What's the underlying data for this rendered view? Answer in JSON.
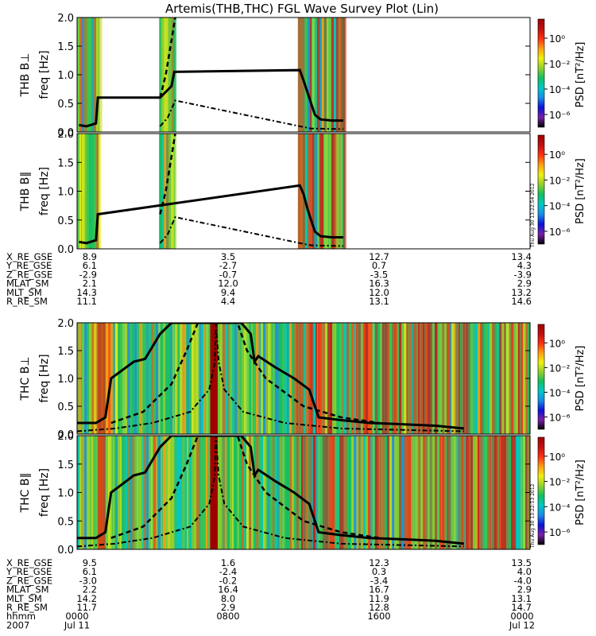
{
  "title": "Artemis(THB,THC) FGL Wave Survey Plot (Lin)",
  "colorbar": {
    "label": "PSD [nT²/Hz]",
    "ticks": [
      {
        "label": "10⁰",
        "exp": 0
      },
      {
        "label": "10⁻²",
        "exp": -2
      },
      {
        "label": "10⁻⁴",
        "exp": -4
      },
      {
        "label": "10⁻⁶",
        "exp": -6
      }
    ],
    "colors": [
      "#000000",
      "#7a1fa8",
      "#0b12d6",
      "#1a8ce8",
      "#00c8c8",
      "#10c060",
      "#8fd02a",
      "#f0f010",
      "#ffa010",
      "#ff3010",
      "#c01010",
      "#a00000"
    ]
  },
  "stamps": [
    "Thu Aug 30 13:22:54 2012",
    "Thu Aug 30 13:22:53 2012"
  ],
  "chart_data": [
    {
      "type": "heatmap",
      "ylabel": "THB B⊥",
      "yunit": "freq [Hz]",
      "ylim": [
        0,
        2.0
      ],
      "yticks": [
        "0.0",
        "0.5",
        "1.0",
        "1.5",
        "2.0"
      ],
      "xlim_hours": [
        0,
        24
      ],
      "data_intervals_hours": [
        [
          0.0,
          1.2
        ],
        [
          4.35,
          5.2
        ],
        [
          11.7,
          14.2
        ]
      ],
      "curves": [
        {
          "style": "solid",
          "points": [
            [
              0.1,
              0.12
            ],
            [
              0.5,
              0.1
            ],
            [
              1.0,
              0.15
            ],
            [
              1.1,
              0.6
            ],
            [
              4.4,
              0.6
            ],
            [
              5.0,
              0.8
            ],
            [
              5.15,
              1.05
            ],
            [
              11.8,
              1.08
            ],
            [
              12.0,
              0.9
            ],
            [
              12.2,
              0.7
            ],
            [
              12.4,
              0.5
            ],
            [
              12.6,
              0.3
            ],
            [
              12.9,
              0.22
            ],
            [
              13.5,
              0.2
            ],
            [
              14.1,
              0.2
            ]
          ]
        },
        {
          "style": "dashed",
          "points": [
            [
              4.4,
              0.6
            ],
            [
              4.7,
              1.0
            ],
            [
              5.0,
              1.6
            ],
            [
              5.2,
              2.0
            ]
          ]
        },
        {
          "style": "dashdot",
          "points": [
            [
              4.4,
              0.1
            ],
            [
              4.8,
              0.25
            ],
            [
              5.2,
              0.55
            ],
            [
              11.8,
              0.1
            ],
            [
              12.4,
              0.06
            ],
            [
              14.1,
              0.05
            ]
          ]
        }
      ]
    },
    {
      "type": "heatmap",
      "ylabel": "THB B∥",
      "yunit": "freq [Hz]",
      "ylim": [
        0,
        2.0
      ],
      "yticks": [
        "0.0",
        "0.5",
        "1.0",
        "1.5",
        "2.0"
      ],
      "xlim_hours": [
        0,
        24
      ],
      "data_intervals_hours": [
        [
          0.0,
          1.2
        ],
        [
          4.35,
          5.2
        ],
        [
          11.7,
          14.2
        ]
      ],
      "curves": [
        {
          "style": "solid",
          "points": [
            [
              0.1,
              0.12
            ],
            [
              0.5,
              0.1
            ],
            [
              1.0,
              0.15
            ],
            [
              1.1,
              0.6
            ],
            [
              11.8,
              1.1
            ],
            [
              12.0,
              0.95
            ],
            [
              12.2,
              0.7
            ],
            [
              12.4,
              0.5
            ],
            [
              12.6,
              0.3
            ],
            [
              12.9,
              0.22
            ],
            [
              13.5,
              0.2
            ],
            [
              14.1,
              0.2
            ]
          ]
        },
        {
          "style": "dashed",
          "points": [
            [
              4.4,
              0.6
            ],
            [
              4.7,
              1.0
            ],
            [
              5.0,
              1.6
            ],
            [
              5.2,
              2.0
            ]
          ]
        },
        {
          "style": "dashdot",
          "points": [
            [
              4.4,
              0.1
            ],
            [
              4.8,
              0.25
            ],
            [
              5.2,
              0.55
            ],
            [
              11.8,
              0.1
            ],
            [
              12.4,
              0.06
            ],
            [
              14.1,
              0.05
            ]
          ]
        }
      ]
    },
    {
      "type": "heatmap",
      "ylabel": "THC B⊥",
      "yunit": "freq [Hz]",
      "ylim": [
        0,
        2.0
      ],
      "yticks": [
        "0.0",
        "0.5",
        "1.0",
        "1.5",
        "2.0"
      ],
      "xlim_hours": [
        0,
        24
      ],
      "data_intervals_hours": [
        [
          0.0,
          24.0
        ]
      ],
      "curves": [
        {
          "style": "solid",
          "points": [
            [
              0.0,
              0.2
            ],
            [
              1.0,
              0.2
            ],
            [
              1.5,
              0.3
            ],
            [
              1.8,
              1.0
            ],
            [
              2.2,
              1.1
            ],
            [
              3.0,
              1.3
            ],
            [
              3.6,
              1.35
            ],
            [
              4.4,
              1.8
            ],
            [
              5.0,
              2.0
            ],
            [
              8.7,
              2.0
            ],
            [
              9.2,
              1.8
            ],
            [
              9.4,
              1.3
            ],
            [
              9.6,
              1.4
            ],
            [
              10.5,
              1.2
            ],
            [
              11.5,
              1.0
            ],
            [
              12.3,
              0.8
            ],
            [
              12.8,
              0.3
            ],
            [
              14.0,
              0.25
            ],
            [
              15.5,
              0.2
            ],
            [
              17.0,
              0.18
            ],
            [
              19.0,
              0.15
            ],
            [
              20.5,
              0.1
            ]
          ]
        },
        {
          "style": "dashed",
          "points": [
            [
              1.8,
              0.2
            ],
            [
              3.5,
              0.4
            ],
            [
              5.0,
              0.9
            ],
            [
              5.8,
              1.5
            ],
            [
              6.4,
              2.0
            ],
            [
              8.5,
              2.0
            ],
            [
              9.0,
              1.5
            ],
            [
              10.0,
              1.0
            ],
            [
              12.0,
              0.5
            ],
            [
              14.0,
              0.3
            ],
            [
              16.0,
              0.2
            ]
          ]
        },
        {
          "style": "dashdot",
          "points": [
            [
              0.0,
              0.05
            ],
            [
              2.0,
              0.1
            ],
            [
              4.0,
              0.2
            ],
            [
              6.0,
              0.4
            ],
            [
              7.0,
              0.8
            ],
            [
              7.3,
              1.3
            ],
            [
              7.35,
              2.0
            ],
            [
              7.5,
              1.3
            ],
            [
              7.8,
              0.8
            ],
            [
              8.8,
              0.4
            ],
            [
              11.0,
              0.2
            ],
            [
              14.0,
              0.1
            ],
            [
              20.5,
              0.05
            ]
          ]
        }
      ]
    },
    {
      "type": "heatmap",
      "ylabel": "THC B∥",
      "yunit": "freq [Hz]",
      "ylim": [
        0,
        2.0
      ],
      "yticks": [
        "0.0",
        "0.5",
        "1.0",
        "1.5",
        "2.0"
      ],
      "xlim_hours": [
        0,
        24
      ],
      "data_intervals_hours": [
        [
          0.0,
          24.0
        ]
      ],
      "curves": [
        {
          "style": "solid",
          "points": [
            [
              0.0,
              0.2
            ],
            [
              1.0,
              0.2
            ],
            [
              1.5,
              0.3
            ],
            [
              1.8,
              1.0
            ],
            [
              2.2,
              1.1
            ],
            [
              3.0,
              1.3
            ],
            [
              3.6,
              1.35
            ],
            [
              4.4,
              1.8
            ],
            [
              5.0,
              2.0
            ],
            [
              8.7,
              2.0
            ],
            [
              9.2,
              1.8
            ],
            [
              9.4,
              1.3
            ],
            [
              9.6,
              1.4
            ],
            [
              10.5,
              1.2
            ],
            [
              11.5,
              1.0
            ],
            [
              12.3,
              0.8
            ],
            [
              12.8,
              0.3
            ],
            [
              14.0,
              0.25
            ],
            [
              15.5,
              0.2
            ],
            [
              17.0,
              0.18
            ],
            [
              19.0,
              0.15
            ],
            [
              20.5,
              0.1
            ]
          ]
        },
        {
          "style": "dashed",
          "points": [
            [
              1.8,
              0.2
            ],
            [
              3.5,
              0.4
            ],
            [
              5.0,
              0.9
            ],
            [
              5.8,
              1.5
            ],
            [
              6.4,
              2.0
            ],
            [
              8.5,
              2.0
            ],
            [
              9.0,
              1.5
            ],
            [
              10.0,
              1.0
            ],
            [
              12.0,
              0.5
            ],
            [
              14.0,
              0.3
            ],
            [
              16.0,
              0.2
            ]
          ]
        },
        {
          "style": "dashdot",
          "points": [
            [
              0.0,
              0.05
            ],
            [
              2.0,
              0.1
            ],
            [
              4.0,
              0.2
            ],
            [
              6.0,
              0.4
            ],
            [
              7.0,
              0.8
            ],
            [
              7.3,
              1.3
            ],
            [
              7.35,
              2.0
            ],
            [
              7.5,
              1.3
            ],
            [
              7.8,
              0.8
            ],
            [
              8.8,
              0.4
            ],
            [
              11.0,
              0.2
            ],
            [
              14.0,
              0.1
            ],
            [
              20.5,
              0.05
            ]
          ]
        }
      ]
    }
  ],
  "ephemeris": [
    {
      "probe": "THB",
      "rows": [
        {
          "label": "X_RE_GSE",
          "values": [
            "8.9",
            "3.5",
            "12.7",
            "13.4"
          ]
        },
        {
          "label": "Y_RE_GSE",
          "values": [
            "6.1",
            "-2.7",
            "0.7",
            "4.3"
          ]
        },
        {
          "label": "Z_RE_GSE",
          "values": [
            "-2.9",
            "-0.7",
            "-3.5",
            "-3.9"
          ]
        },
        {
          "label": "MLAT_SM",
          "values": [
            "2.1",
            "12.0",
            "16.3",
            "2.9"
          ]
        },
        {
          "label": "MLT_SM",
          "values": [
            "14.3",
            "9.4",
            "12.0",
            "13.2"
          ]
        },
        {
          "label": "R_RE_SM",
          "values": [
            "11.1",
            "4.4",
            "13.1",
            "14.6"
          ]
        }
      ]
    },
    {
      "probe": "THC",
      "rows": [
        {
          "label": "X_RE_GSE",
          "values": [
            "9.5",
            "1.6",
            "12.3",
            "13.5"
          ]
        },
        {
          "label": "Y_RE_GSE",
          "values": [
            "6.1",
            "-2.4",
            "0.3",
            "4.0"
          ]
        },
        {
          "label": "Z_RE_GSE",
          "values": [
            "-3.0",
            "-0.2",
            "-3.4",
            "-4.0"
          ]
        },
        {
          "label": "MLAT_SM",
          "values": [
            "2.2",
            "16.4",
            "16.7",
            "2.9"
          ]
        },
        {
          "label": "MLT_SM",
          "values": [
            "14.2",
            "8.0",
            "11.9",
            "13.1"
          ]
        },
        {
          "label": "R_RE_SM",
          "values": [
            "11.7",
            "2.9",
            "12.8",
            "14.7"
          ]
        },
        {
          "label": "hhmm",
          "values": [
            "0000",
            "0800",
            "1600",
            "0000"
          ]
        },
        {
          "label": "2007",
          "values": [
            "Jul 11",
            "",
            "",
            "Jul 12"
          ]
        }
      ]
    }
  ]
}
